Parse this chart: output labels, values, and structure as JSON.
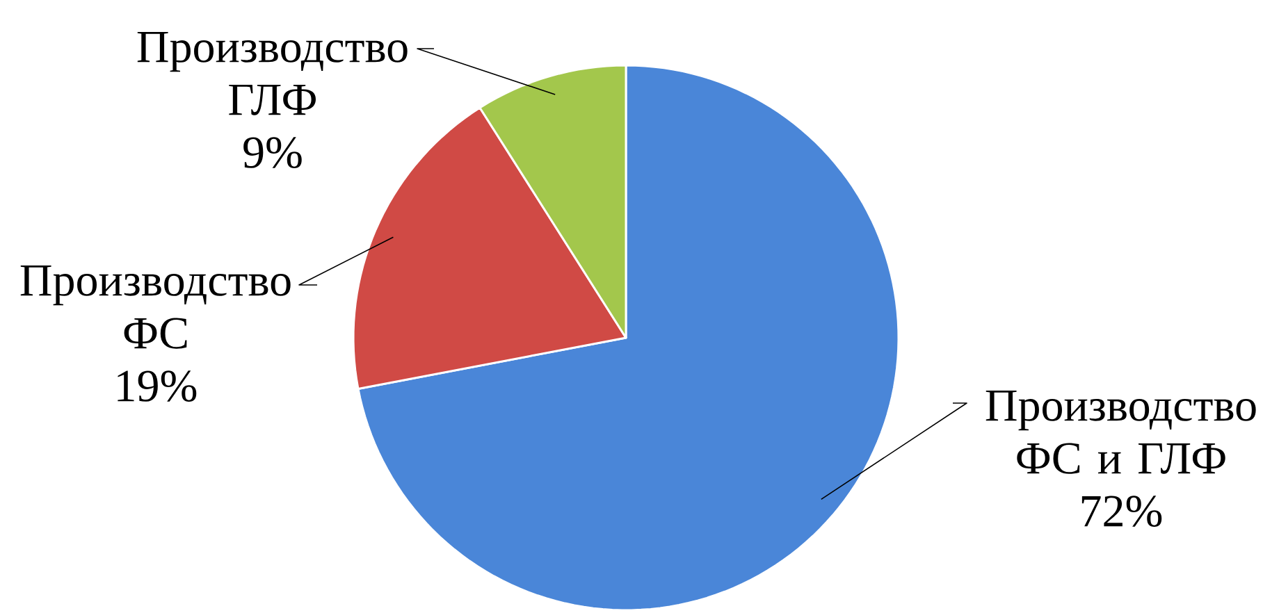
{
  "chart_data": {
    "type": "pie",
    "categories": [
      "Производство ФС и ГЛФ",
      "Производство ФС",
      "Производство ГЛФ"
    ],
    "values": [
      72,
      19,
      9
    ],
    "value_labels": [
      "72%",
      "19%",
      "9%"
    ],
    "colors": [
      "#4a86d8",
      "#d04a45",
      "#a3c74c"
    ]
  }
}
